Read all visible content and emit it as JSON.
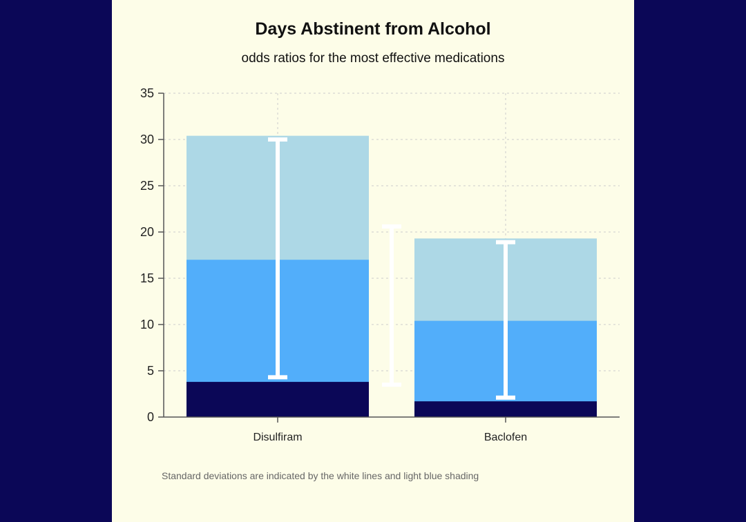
{
  "chart_data": {
    "type": "bar",
    "title": "Days Abstinent from Alcohol",
    "subtitle": "odds ratios for the most effective medications",
    "footnote": "Standard deviations are indicated by the white lines and light blue shading",
    "categories": [
      "Disulfiram",
      "Baclofen"
    ],
    "series": [
      {
        "name": "",
        "color": "#0b0757",
        "values": [
          3.8,
          1.7
        ]
      },
      {
        "name": "",
        "color": "#52aefa",
        "values": [
          17.0,
          10.4
        ]
      },
      {
        "name": "",
        "color": "#add8e6",
        "values": [
          30.4,
          19.3
        ]
      }
    ],
    "error_bars": [
      {
        "category": "Disulfiram",
        "low": 4.3,
        "high": 30.0
      },
      {
        "category": "Baclofen",
        "low": 2.1,
        "high": 18.9
      }
    ],
    "standalone_error_bar": {
      "low": 3.5,
      "high": 20.6
    },
    "yticks": [
      0,
      5,
      10,
      15,
      20,
      25,
      30,
      35
    ],
    "ylim": [
      0,
      35
    ],
    "grid": true,
    "xlabel": "",
    "ylabel": "",
    "colors": {
      "page_background": "#0b0757",
      "panel_background": "#fdfde8",
      "error_bar": "#ffffff",
      "grid": "#cccccc"
    }
  }
}
